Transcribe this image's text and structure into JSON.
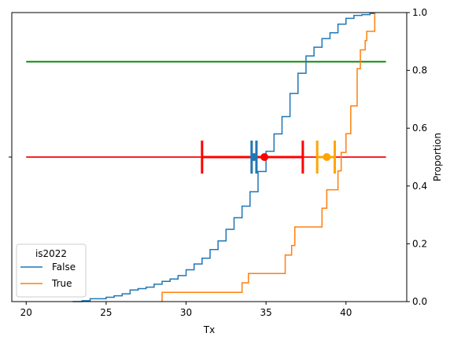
{
  "chart_data": {
    "type": "line",
    "xlabel": "Tx",
    "ylabel": "Proportion",
    "xlim": [
      19.1,
      43.8
    ],
    "ylim": [
      0,
      1
    ],
    "x_ticks": [
      20,
      25,
      30,
      35,
      40
    ],
    "y_ticks": [
      0.0,
      0.2,
      0.4,
      0.6,
      0.8,
      1.0
    ],
    "y_tick_labels": [
      "0.0",
      "0.2",
      "0.4",
      "0.6",
      "0.8",
      "1.0"
    ],
    "grid": false,
    "legend": {
      "title": "is2022",
      "placement": "lower-left",
      "entries": [
        {
          "label": "False",
          "color": "#1f77b4"
        },
        {
          "label": "True",
          "color": "#ff7f0e"
        }
      ]
    },
    "series": [
      {
        "name": "False",
        "color": "#1f77b4",
        "kind": "ecdf",
        "points": [
          [
            22.9,
            0.0
          ],
          [
            23.5,
            0.003
          ],
          [
            24.0,
            0.01
          ],
          [
            25.0,
            0.015
          ],
          [
            25.5,
            0.02
          ],
          [
            26.0,
            0.027
          ],
          [
            26.5,
            0.04
          ],
          [
            27.0,
            0.045
          ],
          [
            27.5,
            0.05
          ],
          [
            28.0,
            0.06
          ],
          [
            28.5,
            0.07
          ],
          [
            29.0,
            0.078
          ],
          [
            29.5,
            0.09
          ],
          [
            30.0,
            0.11
          ],
          [
            30.5,
            0.13
          ],
          [
            31.0,
            0.15
          ],
          [
            31.5,
            0.18
          ],
          [
            32.0,
            0.21
          ],
          [
            32.5,
            0.25
          ],
          [
            33.0,
            0.29
          ],
          [
            33.5,
            0.33
          ],
          [
            34.0,
            0.38
          ],
          [
            34.5,
            0.45
          ],
          [
            35.0,
            0.52
          ],
          [
            35.5,
            0.58
          ],
          [
            36.0,
            0.64
          ],
          [
            36.5,
            0.72
          ],
          [
            37.0,
            0.79
          ],
          [
            37.5,
            0.85
          ],
          [
            38.0,
            0.88
          ],
          [
            38.5,
            0.91
          ],
          [
            39.0,
            0.93
          ],
          [
            39.5,
            0.96
          ],
          [
            40.0,
            0.98
          ],
          [
            40.5,
            0.99
          ],
          [
            41.0,
            0.993
          ],
          [
            41.5,
            0.997
          ],
          [
            41.8,
            1.0
          ]
        ]
      },
      {
        "name": "True",
        "color": "#ff7f0e",
        "kind": "step",
        "points": [
          [
            28.5,
            0.0
          ],
          [
            28.5,
            0.032
          ],
          [
            33.5,
            0.032
          ],
          [
            33.5,
            0.065
          ],
          [
            33.9,
            0.065
          ],
          [
            33.9,
            0.097
          ],
          [
            36.2,
            0.097
          ],
          [
            36.2,
            0.161
          ],
          [
            36.6,
            0.161
          ],
          [
            36.6,
            0.194
          ],
          [
            36.8,
            0.194
          ],
          [
            36.8,
            0.258
          ],
          [
            38.5,
            0.258
          ],
          [
            38.5,
            0.323
          ],
          [
            38.8,
            0.323
          ],
          [
            38.8,
            0.387
          ],
          [
            39.5,
            0.387
          ],
          [
            39.5,
            0.452
          ],
          [
            39.7,
            0.452
          ],
          [
            39.7,
            0.516
          ],
          [
            40.0,
            0.516
          ],
          [
            40.0,
            0.581
          ],
          [
            40.3,
            0.581
          ],
          [
            40.3,
            0.677
          ],
          [
            40.7,
            0.677
          ],
          [
            40.7,
            0.806
          ],
          [
            40.9,
            0.806
          ],
          [
            40.9,
            0.871
          ],
          [
            41.2,
            0.871
          ],
          [
            41.2,
            0.903
          ],
          [
            41.3,
            0.903
          ],
          [
            41.3,
            0.935
          ],
          [
            41.8,
            0.935
          ],
          [
            41.8,
            1.0
          ]
        ]
      }
    ],
    "reference_lines": [
      {
        "name": "green-line",
        "color": "#008000",
        "y": 0.83,
        "x_range": [
          20.0,
          42.5
        ]
      },
      {
        "name": "red-line",
        "color": "#ff0000",
        "y": 0.5,
        "x_range": [
          20.0,
          42.5
        ]
      }
    ],
    "intervals": [
      {
        "name": "red",
        "color": "#ff0000",
        "low": 31.0,
        "high": 37.3,
        "center": 34.9,
        "y": 0.5
      },
      {
        "name": "blue",
        "color": "#1f77b4",
        "low": 34.1,
        "high": 34.4,
        "center": 34.25,
        "y": 0.5
      },
      {
        "name": "orange",
        "color": "#ffa500",
        "low": 38.2,
        "high": 39.3,
        "center": 38.8,
        "y": 0.5
      }
    ]
  }
}
